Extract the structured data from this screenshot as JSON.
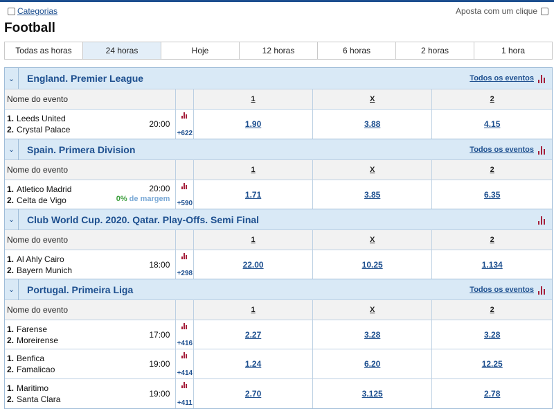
{
  "topbar": {
    "categories_label": "Categorias",
    "one_click_label": "Aposta com um clique"
  },
  "page": {
    "title": "Football"
  },
  "tabs": [
    {
      "label": "Todas as horas",
      "active": false
    },
    {
      "label": "24 horas",
      "active": true
    },
    {
      "label": "Hoje",
      "active": false
    },
    {
      "label": "12 horas",
      "active": false
    },
    {
      "label": "6 horas",
      "active": false
    },
    {
      "label": "2 horas",
      "active": false
    },
    {
      "label": "1 hora",
      "active": false
    }
  ],
  "columns": {
    "event_name": "Nome do evento",
    "home": "1",
    "draw": "X",
    "away": "2"
  },
  "leagues": [
    {
      "name": "England. Premier League",
      "all_events": "Todos os eventos",
      "events": [
        {
          "team1_no": "1.",
          "team1": "Leeds United",
          "team2_no": "2.",
          "team2": "Crystal Palace",
          "time": "20:00",
          "more": "+622",
          "odd1": "1.90",
          "oddX": "3.88",
          "odd2": "4.15"
        }
      ]
    },
    {
      "name": "Spain. Primera Division",
      "all_events": "Todos os eventos",
      "events": [
        {
          "team1_no": "1.",
          "team1": "Atletico Madrid",
          "team2_no": "2.",
          "team2": "Celta de Vigo",
          "time": "20:00",
          "margin_pct": "0%",
          "margin_label": "de margem",
          "more": "+590",
          "odd1": "1.71",
          "oddX": "3.85",
          "odd2": "6.35"
        }
      ]
    },
    {
      "name": "Club World Cup. 2020. Qatar. Play-Offs. Semi Final",
      "all_events": "",
      "events": [
        {
          "team1_no": "1.",
          "team1": "Al Ahly Cairo",
          "team2_no": "2.",
          "team2": "Bayern Munich",
          "time": "18:00",
          "more": "+298",
          "odd1": "22.00",
          "oddX": "10.25",
          "odd2": "1.134"
        }
      ]
    },
    {
      "name": "Portugal. Primeira Liga",
      "all_events": "Todos os eventos",
      "events": [
        {
          "team1_no": "1.",
          "team1": "Farense",
          "team2_no": "2.",
          "team2": "Moreirense",
          "time": "17:00",
          "more": "+416",
          "odd1": "2.27",
          "oddX": "3.28",
          "odd2": "3.28"
        },
        {
          "team1_no": "1.",
          "team1": "Benfica",
          "team2_no": "2.",
          "team2": "Famalicao",
          "time": "19:00",
          "more": "+414",
          "odd1": "1.24",
          "oddX": "6.20",
          "odd2": "12.25"
        },
        {
          "team1_no": "1.",
          "team1": "Maritimo",
          "team2_no": "2.",
          "team2": "Santa Clara",
          "time": "19:00",
          "more": "+411",
          "odd1": "2.70",
          "oddX": "3.125",
          "odd2": "2.78"
        }
      ]
    }
  ],
  "icons": {
    "collapse": "chevron-down-icon",
    "stats": "bar-chart-icon"
  },
  "colors": {
    "accent": "#1d4f8f",
    "league_header_bg": "#d9e9f6",
    "stats_icon": "#a51e3a",
    "margin_green": "#3a9d3a"
  }
}
